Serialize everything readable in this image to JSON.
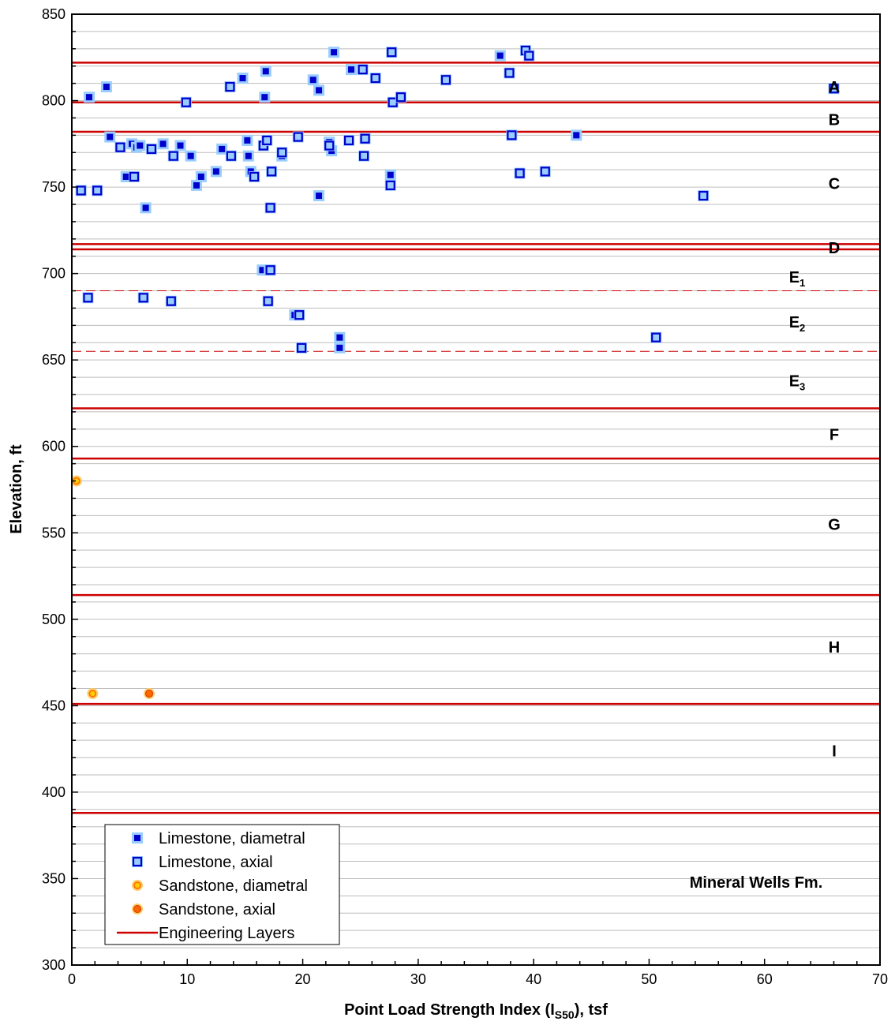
{
  "chart_data": {
    "type": "scatter",
    "xlabel": "Point Load Strength Index (I",
    "xlabel_sub": "S50",
    "xlabel_suffix": "), tsf",
    "ylabel": "Elevation, ft",
    "xlim": [
      0,
      70
    ],
    "ylim": [
      300,
      850
    ],
    "x_ticks": [
      "0",
      "10",
      "20",
      "30",
      "40",
      "50",
      "60",
      "70"
    ],
    "y_ticks": [
      "300",
      "350",
      "400",
      "450",
      "500",
      "550",
      "600",
      "650",
      "700",
      "750",
      "800",
      "850"
    ],
    "grid": "horizontal",
    "legend_position": "bottom-left",
    "annotation": "Mineral Wells Fm.",
    "colors": {
      "limestone_fill": "#0000cc",
      "limestone_halo": "#99ccff",
      "sandstone_diam_fill": "#ffcc00",
      "sandstone_axial_fill": "#ff6600",
      "sandstone_halo": "#ffcc66",
      "layer_line": "#cc0000"
    },
    "engineering_layers": [
      822,
      799,
      782,
      717,
      714,
      622,
      593,
      514,
      451,
      388
    ],
    "sub_layers_dashed": [
      690,
      655
    ],
    "layer_labels": [
      {
        "label": "A",
        "sub": "",
        "y": 808
      },
      {
        "label": "B",
        "sub": "",
        "y": 789
      },
      {
        "label": "C",
        "sub": "",
        "y": 752
      },
      {
        "label": "D",
        "sub": "",
        "y": 715
      },
      {
        "label": "E",
        "sub": "1",
        "y": 698
      },
      {
        "label": "E",
        "sub": "2",
        "y": 672
      },
      {
        "label": "E",
        "sub": "3",
        "y": 638
      },
      {
        "label": "F",
        "sub": "",
        "y": 607
      },
      {
        "label": "G",
        "sub": "",
        "y": 555
      },
      {
        "label": "H",
        "sub": "",
        "y": 484
      },
      {
        "label": "I",
        "sub": "",
        "y": 424
      }
    ],
    "series": [
      {
        "name": "Limestone, diametral",
        "marker": "filled-square",
        "points": [
          [
            1.5,
            802
          ],
          [
            3.0,
            808
          ],
          [
            3.3,
            779
          ],
          [
            4.7,
            756
          ],
          [
            5.2,
            775
          ],
          [
            5.6,
            773
          ],
          [
            5.9,
            774
          ],
          [
            6.4,
            738
          ],
          [
            7.9,
            775
          ],
          [
            9.4,
            774
          ],
          [
            10.3,
            768
          ],
          [
            10.8,
            751
          ],
          [
            11.2,
            756
          ],
          [
            12.5,
            759
          ],
          [
            13.0,
            772
          ],
          [
            14.8,
            813
          ],
          [
            15.2,
            777
          ],
          [
            15.5,
            759
          ],
          [
            15.3,
            768
          ],
          [
            16.8,
            817
          ],
          [
            16.5,
            702
          ],
          [
            17.1,
            702
          ],
          [
            16.7,
            802
          ],
          [
            18.2,
            768
          ],
          [
            19.3,
            676
          ],
          [
            21.4,
            806
          ],
          [
            20.9,
            812
          ],
          [
            22.3,
            776
          ],
          [
            22.7,
            828
          ],
          [
            22.5,
            771
          ],
          [
            21.4,
            745
          ],
          [
            23.2,
            663
          ],
          [
            23.2,
            657
          ],
          [
            24.2,
            818
          ],
          [
            27.6,
            757
          ],
          [
            37.1,
            826
          ],
          [
            43.7,
            780
          ]
        ]
      },
      {
        "name": "Limestone, axial",
        "marker": "open-square",
        "points": [
          [
            0.8,
            748
          ],
          [
            2.2,
            748
          ],
          [
            4.2,
            773
          ],
          [
            5.4,
            756
          ],
          [
            6.9,
            772
          ],
          [
            8.8,
            768
          ],
          [
            9.9,
            799
          ],
          [
            13.7,
            808
          ],
          [
            13.8,
            768
          ],
          [
            15.8,
            756
          ],
          [
            16.6,
            774
          ],
          [
            16.9,
            777
          ],
          [
            17.2,
            738
          ],
          [
            17.3,
            759
          ],
          [
            17.2,
            702
          ],
          [
            17.0,
            684
          ],
          [
            18.2,
            770
          ],
          [
            19.6,
            779
          ],
          [
            19.7,
            676
          ],
          [
            19.9,
            657
          ],
          [
            22.3,
            774
          ],
          [
            24.0,
            777
          ],
          [
            25.2,
            818
          ],
          [
            25.3,
            768
          ],
          [
            25.4,
            778
          ],
          [
            26.3,
            813
          ],
          [
            27.6,
            751
          ],
          [
            27.7,
            828
          ],
          [
            27.8,
            799
          ],
          [
            28.5,
            802
          ],
          [
            32.4,
            812
          ],
          [
            37.9,
            816
          ],
          [
            38.1,
            780
          ],
          [
            38.8,
            758
          ],
          [
            39.3,
            829
          ],
          [
            39.6,
            826
          ],
          [
            41.0,
            759
          ],
          [
            50.6,
            663
          ],
          [
            54.7,
            745
          ],
          [
            66.0,
            807
          ],
          [
            1.4,
            686
          ],
          [
            6.2,
            686
          ],
          [
            8.6,
            684
          ]
        ]
      },
      {
        "name": "Sandstone, diametral",
        "marker": "circle",
        "points": [
          [
            0.4,
            580
          ],
          [
            1.8,
            457
          ]
        ]
      },
      {
        "name": "Sandstone, axial",
        "marker": "circle",
        "points": [
          [
            6.7,
            457
          ]
        ]
      },
      {
        "name": "Engineering Layers",
        "marker": "line",
        "points": []
      }
    ]
  }
}
